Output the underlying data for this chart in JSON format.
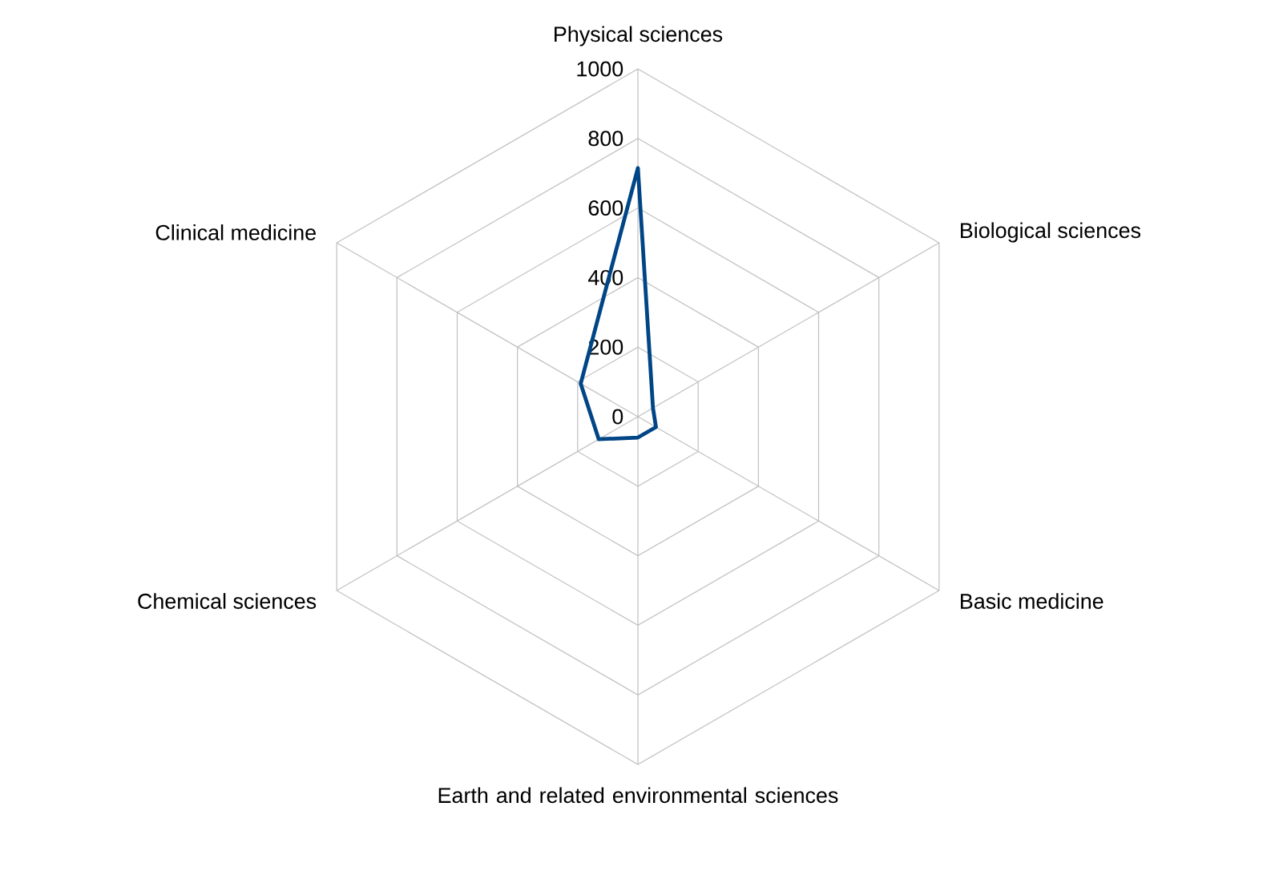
{
  "chart_data": {
    "type": "radar",
    "categories": [
      "Physical sciences",
      "Biological sciences",
      "Basic medicine",
      "Earth and related environmental sciences",
      "Chemical sciences",
      "Clinical medicine"
    ],
    "series": [
      {
        "color": "#004586",
        "values": [
          715,
          50,
          60,
          60,
          130,
          190
        ]
      }
    ],
    "ylim": [
      0,
      1000
    ],
    "yticks": [
      0,
      200,
      400,
      600,
      800,
      1000
    ],
    "grid": true
  }
}
